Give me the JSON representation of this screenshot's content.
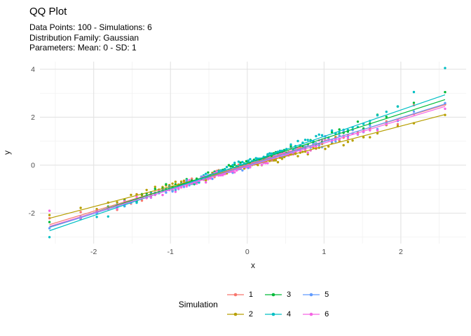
{
  "colors": {
    "background": "#ffffff",
    "grid_major": "#e3e3e3",
    "grid_minor": "#f1f1f1",
    "tick_label": "#4d4d4d",
    "axis_title": "#1a1a1a",
    "text": "#000000"
  },
  "chart_data": {
    "type": "scatter",
    "title": "QQ Plot",
    "subtitle_lines": [
      "Data Points: 100 - Simulations: 6",
      "Distribution Family: Gaussian",
      "Parameters: Mean: 0 - SD: 1"
    ],
    "xlabel": "x",
    "ylabel": "y",
    "legend_title": "Simulation",
    "legend_position": "bottom",
    "grid": true,
    "xlim": [
      -2.7,
      2.85
    ],
    "ylim": [
      -3.27,
      4.32
    ],
    "x_major_ticks": [
      -2,
      -1,
      0,
      1,
      2
    ],
    "x_minor_ticks": [
      -2.5,
      -1.5,
      -0.5,
      0.5,
      1.5,
      2.5
    ],
    "y_major_ticks": [
      -2,
      0,
      2,
      4
    ],
    "y_minor_ticks": [
      -3,
      -1,
      1,
      3
    ],
    "points_per_series": 100,
    "line_x_range": [
      -2.576,
      2.576
    ],
    "theoretical_quantiles": [
      -2.576,
      -2.17,
      -1.96,
      -1.812,
      -1.695,
      -1.598,
      -1.514,
      -1.44,
      -1.372,
      -1.311,
      -1.254,
      -1.2,
      -1.15,
      -1.103,
      -1.058,
      -1.015,
      -0.974,
      -0.935,
      -0.896,
      -0.86,
      -0.824,
      -0.789,
      -0.755,
      -0.722,
      -0.69,
      -0.659,
      -0.628,
      -0.598,
      -0.568,
      -0.539,
      -0.51,
      -0.482,
      -0.454,
      -0.426,
      -0.399,
      -0.372,
      -0.345,
      -0.319,
      -0.292,
      -0.266,
      -0.24,
      -0.215,
      -0.189,
      -0.164,
      -0.138,
      -0.113,
      -0.088,
      -0.063,
      -0.038,
      -0.013,
      0.013,
      0.038,
      0.063,
      0.088,
      0.113,
      0.138,
      0.164,
      0.189,
      0.215,
      0.24,
      0.266,
      0.292,
      0.319,
      0.345,
      0.372,
      0.399,
      0.426,
      0.454,
      0.482,
      0.51,
      0.539,
      0.568,
      0.598,
      0.628,
      0.659,
      0.69,
      0.722,
      0.755,
      0.789,
      0.824,
      0.86,
      0.896,
      0.935,
      0.974,
      1.015,
      1.058,
      1.103,
      1.15,
      1.2,
      1.254,
      1.311,
      1.372,
      1.44,
      1.514,
      1.598,
      1.695,
      1.812,
      1.96,
      2.17,
      2.576
    ],
    "series": [
      {
        "name": "1",
        "color": "#F8766D",
        "slope": 0.97,
        "intercept": 0.02,
        "noise_sd": 0.06,
        "seed": 101,
        "overrides": [
          [
            -2.576,
            -2.21
          ],
          [
            2.17,
            2.5
          ]
        ]
      },
      {
        "name": "2",
        "color": "#B79F00",
        "slope": 0.84,
        "intercept": -0.05,
        "noise_sd": 0.055,
        "seed": 202,
        "overrides": [
          [
            -2.576,
            -2.08
          ],
          [
            -2.17,
            -1.78
          ]
        ]
      },
      {
        "name": "3",
        "color": "#00BA38",
        "slope": 1.03,
        "intercept": 0.08,
        "noise_sd": 0.06,
        "seed": 303,
        "overrides": [
          [
            -2.576,
            -2.37
          ],
          [
            1.695,
            2.1
          ],
          [
            1.96,
            2.45
          ],
          [
            2.17,
            2.6
          ]
        ]
      },
      {
        "name": "4",
        "color": "#00BFC4",
        "slope": 1.1,
        "intercept": 0.1,
        "noise_sd": 0.065,
        "seed": 404,
        "overrides": [
          [
            -2.576,
            -3.0
          ],
          [
            -1.812,
            -2.14
          ],
          [
            1.96,
            2.45
          ],
          [
            2.17,
            3.05
          ],
          [
            2.576,
            4.05
          ]
        ]
      },
      {
        "name": "5",
        "color": "#619CFF",
        "slope": 1.0,
        "intercept": -0.02,
        "noise_sd": 0.06,
        "seed": 505,
        "overrides": [
          [
            -2.576,
            -2.63
          ]
        ]
      },
      {
        "name": "6",
        "color": "#F564E3",
        "slope": 0.97,
        "intercept": -0.05,
        "noise_sd": 0.06,
        "seed": 606,
        "overrides": [
          [
            -2.576,
            -1.9
          ]
        ]
      }
    ]
  }
}
